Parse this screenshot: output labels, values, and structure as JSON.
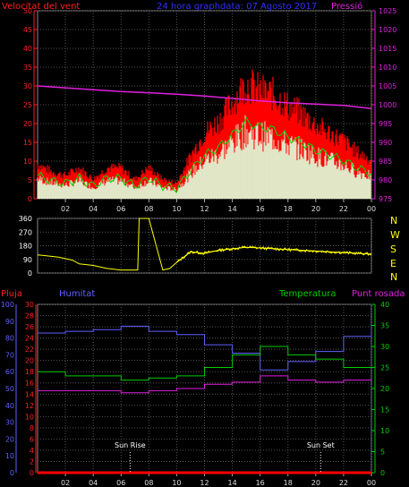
{
  "header": {
    "wind_label": "Velocitat del vent",
    "title": "24 hora graphdata: 07 Agosto 2017",
    "pressure_label": "Pressió"
  },
  "colors": {
    "wind": "#ff0000",
    "gust_green": "#00dd00",
    "wind_light": "#ddffdd",
    "pressure": "#e020e0",
    "direction": "#ffff00",
    "humidity": "#6060ff",
    "temperature": "#00cc00",
    "dewpoint": "#e020e0",
    "rain": "#ff0000",
    "grid": "#555555",
    "axis_left": "#ff2020",
    "axis_right": "#e020e0"
  },
  "legend2": {
    "rain": "Pluja",
    "humidity": "Humitat",
    "temperature": "Temperatura",
    "dewpoint": "Punt rosada"
  },
  "compass": [
    "N",
    "W",
    "S",
    "E",
    "N"
  ],
  "annotations": {
    "sunrise": "Sun Rise",
    "sunset": "Sun Set"
  },
  "chart_data": [
    {
      "type": "line",
      "title": "24 hora graphdata: 07 Agosto 2017",
      "xlabel": "",
      "ylabel": "Velocitat del vent",
      "y2label": "Pressió",
      "x_ticks": [
        "02",
        "04",
        "06",
        "08",
        "10",
        "12",
        "14",
        "16",
        "18",
        "20",
        "22",
        "00"
      ],
      "ylim": [
        0,
        50
      ],
      "y_ticks": [
        0,
        5,
        10,
        15,
        20,
        25,
        30,
        35,
        40,
        45,
        50
      ],
      "y2lim": [
        975,
        1025
      ],
      "y2_ticks": [
        975,
        980,
        985,
        990,
        995,
        1000,
        1005,
        1010,
        1015,
        1020,
        1025
      ],
      "grid": true,
      "series": [
        {
          "name": "Velocitat del vent",
          "x": [
            0,
            1,
            2,
            3,
            4,
            5,
            6,
            7,
            8,
            9,
            10,
            11,
            12,
            13,
            14,
            15,
            16,
            17,
            18,
            19,
            20,
            21,
            22,
            23,
            24
          ],
          "values": [
            9,
            7,
            6,
            8,
            5,
            8,
            8,
            5,
            8,
            5,
            4,
            11,
            17,
            20,
            25,
            30,
            28,
            27,
            24,
            22,
            19,
            17,
            15,
            12,
            10
          ]
        },
        {
          "name": "Pressió",
          "x": [
            0,
            2,
            4,
            6,
            8,
            10,
            12,
            14,
            16,
            18,
            20,
            22,
            24
          ],
          "values": [
            1005,
            1004.5,
            1004,
            1003.5,
            1003.2,
            1002.8,
            1002.3,
            1001.7,
            1001,
            1000.5,
            1000.2,
            999.8,
            999
          ]
        }
      ]
    },
    {
      "type": "line",
      "ylabel": "",
      "ylim": [
        0,
        360
      ],
      "y_ticks": [
        0,
        90,
        180,
        270,
        360
      ],
      "grid": true,
      "series": [
        {
          "name": "",
          "x": [
            0,
            0.5,
            1,
            1.5,
            2,
            2.5,
            3,
            4,
            5,
            6,
            7,
            7.2,
            7.3,
            8,
            9,
            9.5,
            10,
            11,
            12,
            13,
            14,
            15,
            16,
            17,
            18,
            19,
            20,
            21,
            22,
            23,
            24
          ],
          "values": [
            120,
            115,
            110,
            105,
            95,
            85,
            60,
            50,
            30,
            20,
            20,
            20,
            360,
            360,
            20,
            30,
            70,
            140,
            130,
            150,
            160,
            170,
            165,
            160,
            155,
            150,
            145,
            140,
            135,
            130,
            125
          ]
        }
      ]
    },
    {
      "type": "line",
      "ylim": [
        0,
        30
      ],
      "y_ticks": [
        0,
        2,
        4,
        6,
        8,
        10,
        12,
        14,
        16,
        18,
        20,
        22,
        24,
        26,
        28,
        30
      ],
      "y2lim": [
        0,
        100
      ],
      "y2_ticks": [
        0,
        10,
        20,
        30,
        40,
        50,
        60,
        70,
        80,
        90,
        100
      ],
      "y3lim": [
        0,
        40
      ],
      "y3_ticks": [
        0,
        5,
        10,
        15,
        20,
        25,
        30,
        35,
        40
      ],
      "x_ticks": [
        "02",
        "04",
        "06",
        "08",
        "10",
        "12",
        "14",
        "16",
        "18",
        "20",
        "22",
        "00"
      ],
      "grid": true,
      "series": [
        {
          "name": "Humitat",
          "x": [
            0,
            2,
            4,
            6,
            8,
            10,
            12,
            14,
            16,
            18,
            20,
            22,
            24
          ],
          "values": [
            83,
            84,
            85,
            87,
            84,
            82,
            76,
            71,
            61,
            66,
            72,
            81,
            86
          ]
        },
        {
          "name": "Temperatura",
          "x": [
            0,
            2,
            4,
            6,
            8,
            10,
            12,
            14,
            16,
            18,
            20,
            22,
            24
          ],
          "values": [
            24,
            23,
            23,
            22,
            22.5,
            23,
            25,
            28,
            30,
            28,
            27,
            25,
            25
          ]
        },
        {
          "name": "Punt rosada",
          "x": [
            0,
            2,
            4,
            6,
            8,
            10,
            12,
            14,
            16,
            18,
            20,
            22,
            24
          ],
          "values": [
            19.5,
            19.5,
            19.5,
            19,
            19.5,
            20,
            21,
            21.5,
            23,
            22,
            21.5,
            22,
            22
          ]
        },
        {
          "name": "Pluja",
          "x": [
            0,
            24
          ],
          "values": [
            0,
            0
          ]
        }
      ]
    }
  ]
}
